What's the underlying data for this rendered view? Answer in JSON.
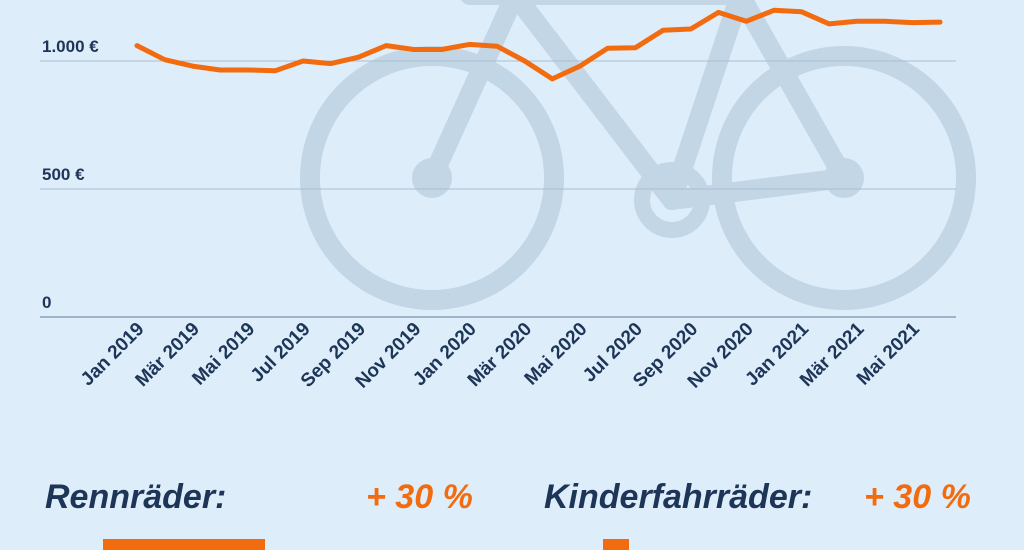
{
  "colors": {
    "background": "#deedfa",
    "line": "#f26b0f",
    "text": "#1d3557",
    "grid": "#aabdd0",
    "bike": "#c3d6e6"
  },
  "chart_data": {
    "type": "line",
    "ylim": [
      0,
      1250
    ],
    "yticks": [
      {
        "value": 0,
        "label": "0"
      },
      {
        "value": 500,
        "label": "500 €"
      },
      {
        "value": 1000,
        "label": "1.000 €"
      }
    ],
    "x_tick_labels": [
      "Jan 2019",
      "Mär 2019",
      "Mai 2019",
      "Jul 2019",
      "Sep 2019",
      "Nov 2019",
      "Jan 2020",
      "Mär 2020",
      "Mai 2020",
      "Jul 2020",
      "Sep 2020",
      "Nov 2020",
      "Jan 2021",
      "Mär 2021",
      "Mai 2021"
    ],
    "x": [
      "Jan 2019",
      "Feb 2019",
      "Mär 2019",
      "Apr 2019",
      "Mai 2019",
      "Jun 2019",
      "Jul 2019",
      "Aug 2019",
      "Sep 2019",
      "Okt 2019",
      "Nov 2019",
      "Dez 2019",
      "Jan 2020",
      "Feb 2020",
      "Mär 2020",
      "Apr 2020",
      "Mai 2020",
      "Jun 2020",
      "Jul 2020",
      "Aug 2020",
      "Sep 2020",
      "Okt 2020",
      "Nov 2020",
      "Dez 2020",
      "Jan 2021",
      "Feb 2021",
      "Mär 2021",
      "Apr 2021",
      "Mai 2021",
      "Jun 2021"
    ],
    "series": [
      {
        "values": [
          1060,
          1005,
          980,
          965,
          965,
          962,
          1000,
          990,
          1015,
          1060,
          1045,
          1045,
          1065,
          1058,
          1000,
          930,
          980,
          1050,
          1052,
          1120,
          1125,
          1190,
          1155,
          1198,
          1192,
          1145,
          1155,
          1155,
          1150,
          1152
        ]
      }
    ],
    "grid": true,
    "legend": "none"
  },
  "categories": [
    {
      "label": "Rennräder:",
      "value": "+ 30 %"
    },
    {
      "label": "Kinderfahrräder:",
      "value": "+ 30 %"
    }
  ]
}
